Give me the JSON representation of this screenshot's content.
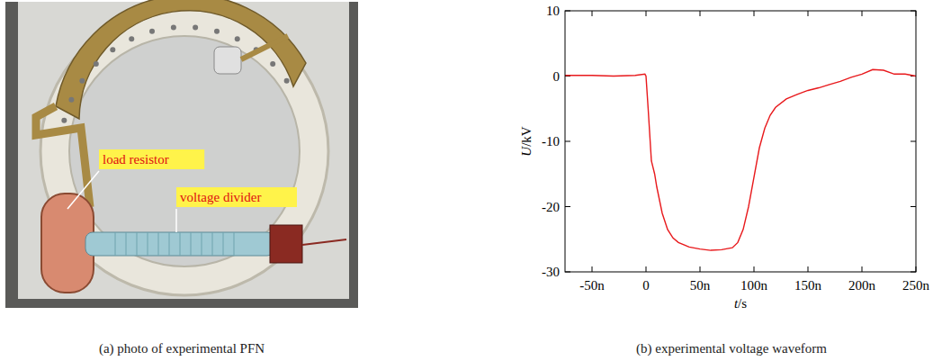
{
  "photo": {
    "labels": [
      "load resistor",
      "voltage divider"
    ],
    "caption": "(a) photo of experimental PFN"
  },
  "chart_data": {
    "type": "line",
    "caption": "(b) experimental voltage waveform",
    "x_label": "t/s",
    "y_label": "U/kV",
    "xlim": [
      -7.5e-08,
      2.5e-07
    ],
    "xticks": [
      {
        "value": -5e-08,
        "label": "-50n"
      },
      0,
      {
        "value": 5e-08,
        "label": "50n"
      },
      {
        "value": 1e-07,
        "label": "100n"
      },
      {
        "value": 1.5e-07,
        "label": "150n"
      },
      {
        "value": 2e-07,
        "label": "200n"
      },
      {
        "value": 2.5e-07,
        "label": "250n"
      }
    ],
    "ylim": [
      -30,
      10
    ],
    "yticks": [
      -30,
      -20,
      -10,
      0,
      10
    ],
    "grid": false,
    "series": [
      {
        "name": "U",
        "color": "#e8191c",
        "x": [
          -7.5e-08,
          -5e-08,
          -3e-08,
          -1e-08,
          -1e-09,
          0,
          2e-09,
          5e-09,
          8e-09,
          1e-08,
          1.5e-08,
          2e-08,
          2.5e-08,
          3e-08,
          4e-08,
          5e-08,
          6e-08,
          7e-08,
          8e-08,
          8.5e-08,
          9e-08,
          9.5e-08,
          1e-07,
          1.05e-07,
          1.1e-07,
          1.15e-07,
          1.2e-07,
          1.3e-07,
          1.4e-07,
          1.5e-07,
          1.6e-07,
          1.7e-07,
          1.8e-07,
          1.9e-07,
          2e-07,
          2.1e-07,
          2.2e-07,
          2.3e-07,
          2.4e-07,
          2.5e-07
        ],
        "values": [
          0.1,
          0.1,
          0,
          0.1,
          0.3,
          0,
          -5,
          -13,
          -15,
          -17,
          -21,
          -23.5,
          -24.8,
          -25.5,
          -26.2,
          -26.5,
          -26.7,
          -26.6,
          -26.3,
          -25.5,
          -23.5,
          -20,
          -15.5,
          -11,
          -8,
          -6,
          -4.8,
          -3.5,
          -2.8,
          -2.2,
          -1.8,
          -1.3,
          -0.8,
          -0.2,
          0.3,
          1,
          0.9,
          0.3,
          0.3,
          0
        ]
      }
    ]
  }
}
